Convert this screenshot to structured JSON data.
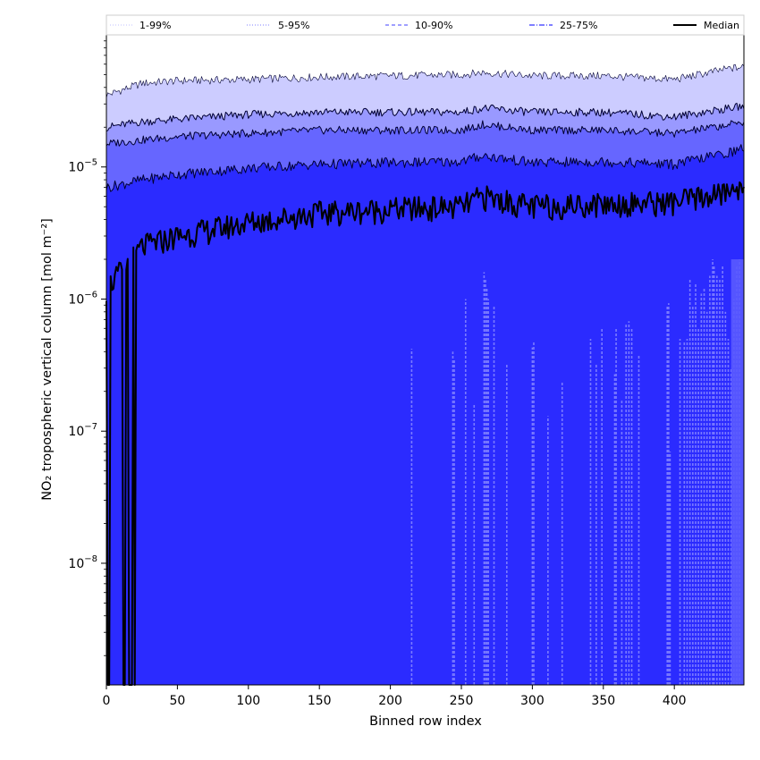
{
  "chart_data": {
    "type": "area",
    "xlabel": "Binned row index",
    "ylabel": "NO₂ tropospheric vertical column [mol m⁻²]",
    "xlim": [
      0,
      449
    ],
    "ylim": [
      1.2e-09,
      0.0001
    ],
    "yscale": "log",
    "xticks": [
      0,
      50,
      100,
      150,
      200,
      250,
      300,
      350,
      400
    ],
    "yticks": [
      {
        "value": 1e-08,
        "base": "10",
        "exp": "−8"
      },
      {
        "value": 1e-07,
        "base": "10",
        "exp": "−7"
      },
      {
        "value": 1e-06,
        "base": "10",
        "exp": "−6"
      },
      {
        "value": 1e-05,
        "base": "10",
        "exp": "−5"
      }
    ],
    "grid": false,
    "legend": "top (single row, above plot)",
    "x_anchor": [
      0,
      25,
      50,
      100,
      150,
      200,
      250,
      265,
      300,
      350,
      400,
      440,
      449
    ],
    "series": [
      {
        "name": "1-99%",
        "color": "#ccccff",
        "linestyle": "dotted",
        "values": [
          3.5e-05,
          4.3e-05,
          4.5e-05,
          4.6e-05,
          4.8e-05,
          4.9e-05,
          5e-05,
          5.2e-05,
          4.9e-05,
          4.9e-05,
          4.6e-05,
          5.6e-05,
          5.7e-05
        ]
      },
      {
        "name": "5-95%",
        "color": "#9999ff",
        "linestyle": "dotted",
        "values": [
          2e-05,
          2.2e-05,
          2.3e-05,
          2.5e-05,
          2.6e-05,
          2.6e-05,
          2.6e-05,
          2.8e-05,
          2.6e-05,
          2.6e-05,
          2.4e-05,
          2.8e-05,
          2.9e-05
        ]
      },
      {
        "name": "10-90%",
        "color": "#6666ff",
        "linestyle": "dashed",
        "values": [
          1.5e-05,
          1.6e-05,
          1.7e-05,
          1.8e-05,
          1.9e-05,
          1.9e-05,
          1.9e-05,
          2.1e-05,
          1.9e-05,
          1.9e-05,
          1.8e-05,
          2.1e-05,
          2.2e-05
        ]
      },
      {
        "name": "25-75%",
        "color": "#3333ff",
        "linestyle": "dashdot",
        "values": [
          7e-06,
          8e-06,
          8.8e-06,
          9.8e-06,
          1.05e-05,
          1.08e-05,
          1.1e-05,
          1.22e-05,
          1.08e-05,
          1.1e-05,
          1.05e-05,
          1.3e-05,
          1.4e-05
        ]
      },
      {
        "name": "Median",
        "color": "#000000",
        "linestyle": "solid",
        "values": [
          1.2e-06,
          2.5e-06,
          3e-06,
          3.8e-06,
          4.5e-06,
          4.8e-06,
          5e-06,
          6e-06,
          5e-06,
          5.3e-06,
          5.4e-06,
          6.5e-06,
          7.5e-06
        ]
      }
    ],
    "median_gaps": [
      {
        "x": 1,
        "to": "bottom"
      },
      {
        "x": 2,
        "to": "bottom"
      },
      {
        "x": 12,
        "to": "bottom"
      },
      {
        "x": 13,
        "to": "bottom"
      },
      {
        "x": 16,
        "to": "bottom"
      },
      {
        "x": 17,
        "to": "bottom"
      },
      {
        "x": 18,
        "to": "bottom"
      },
      {
        "x": 20,
        "to": "bottom"
      }
    ],
    "lower_spikes": {
      "x": [
        215,
        244,
        245,
        253,
        259,
        266,
        267,
        268,
        269,
        273,
        282,
        300,
        301,
        311,
        321,
        341,
        345,
        349,
        358,
        359,
        363,
        366,
        368,
        370,
        375,
        395,
        396,
        397,
        404,
        407,
        409,
        411,
        413,
        415,
        417,
        419,
        421,
        423,
        425,
        427,
        428,
        430,
        432,
        434,
        436,
        438,
        440,
        442,
        444,
        446
      ],
      "top": [
        4.2e-07,
        4e-07,
        3.5e-07,
        1e-06,
        1.6e-07,
        1.6e-06,
        1.4e-06,
        1.2e-06,
        1e-06,
        9e-07,
        3.2e-07,
        4.3e-07,
        4.8e-07,
        1.3e-07,
        2.4e-07,
        5e-07,
        3.2e-07,
        6e-07,
        2.7e-07,
        6e-07,
        1.7e-07,
        6.4e-07,
        6.8e-07,
        6.1e-07,
        3.8e-07,
        9e-07,
        9.3e-07,
        7e-08,
        5e-07,
        4.7e-07,
        5e-07,
        1.4e-06,
        9e-07,
        1.3e-06,
        6e-07,
        1.1e-06,
        1.2e-06,
        8e-07,
        1.5e-06,
        2e-06,
        1.8e-06,
        1.5e-06,
        1.4e-06,
        1.8e-06,
        8e-07,
        5e-07,
        3e-07,
        1e-06,
        1.8e-06,
        2e-06
      ]
    }
  }
}
